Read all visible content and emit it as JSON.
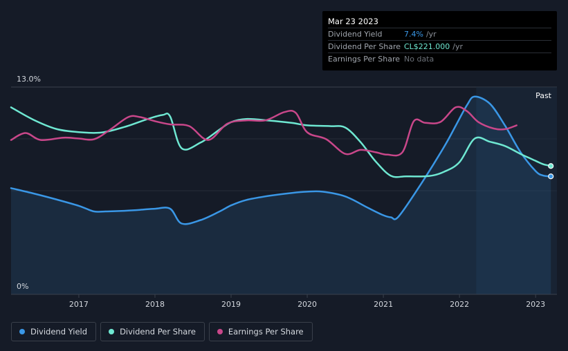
{
  "tooltip": {
    "date": "Mar 23 2023",
    "rows": [
      {
        "label": "Dividend Yield",
        "value": "7.4%",
        "unit": "/yr"
      },
      {
        "label": "Dividend Per Share",
        "value": "CL$221.000",
        "unit": "/yr"
      },
      {
        "label": "Earnings Per Share",
        "value": "No data",
        "unit": ""
      }
    ]
  },
  "past_label": "Past",
  "legend": [
    {
      "label": "Dividend Yield",
      "color": "#3a97e6"
    },
    {
      "label": "Dividend Per Share",
      "color": "#6fe8d2"
    },
    {
      "label": "Earnings Per Share",
      "color": "#c9478a"
    }
  ],
  "chart_data": {
    "type": "line",
    "title": "",
    "xlabel": "",
    "ylabel": "",
    "xlim": [
      2016.11,
      2023.28
    ],
    "ylim": [
      0,
      13.0
    ],
    "y_tick_labels": [
      "13.0%",
      "0%"
    ],
    "x_ticks": [
      2017,
      2018,
      2019,
      2020,
      2021,
      2022,
      2023
    ],
    "x_tick_labels": [
      "2017",
      "2018",
      "2019",
      "2020",
      "2021",
      "2022",
      "2023"
    ],
    "grid": true,
    "legend_position": "bottom-left",
    "past_region_start": 2022.22,
    "series": [
      {
        "name": "Dividend Yield",
        "color": "#3a97e6",
        "area": true,
        "points": [
          [
            2016.11,
            6.66
          ],
          [
            2016.4,
            6.33
          ],
          [
            2016.7,
            5.96
          ],
          [
            2017.0,
            5.55
          ],
          [
            2017.2,
            5.2
          ],
          [
            2017.35,
            5.2
          ],
          [
            2017.5,
            5.22
          ],
          [
            2017.8,
            5.3
          ],
          [
            2018.0,
            5.37
          ],
          [
            2018.2,
            5.37
          ],
          [
            2018.35,
            4.44
          ],
          [
            2018.6,
            4.66
          ],
          [
            2018.85,
            5.2
          ],
          [
            2019.0,
            5.58
          ],
          [
            2019.2,
            5.92
          ],
          [
            2019.5,
            6.18
          ],
          [
            2019.8,
            6.36
          ],
          [
            2020.0,
            6.44
          ],
          [
            2020.2,
            6.44
          ],
          [
            2020.5,
            6.14
          ],
          [
            2020.8,
            5.42
          ],
          [
            2021.0,
            4.96
          ],
          [
            2021.1,
            4.83
          ],
          [
            2021.2,
            4.88
          ],
          [
            2021.5,
            6.96
          ],
          [
            2021.8,
            9.27
          ],
          [
            2021.95,
            10.57
          ],
          [
            2022.1,
            11.88
          ],
          [
            2022.2,
            12.4
          ],
          [
            2022.4,
            11.95
          ],
          [
            2022.6,
            10.57
          ],
          [
            2022.8,
            8.93
          ],
          [
            2023.0,
            7.73
          ],
          [
            2023.1,
            7.45
          ],
          [
            2023.2,
            7.4
          ]
        ]
      },
      {
        "name": "Dividend Per Share",
        "color": "#6fe8d2",
        "points": [
          [
            2016.11,
            11.73
          ],
          [
            2016.4,
            10.96
          ],
          [
            2016.7,
            10.38
          ],
          [
            2017.0,
            10.17
          ],
          [
            2017.3,
            10.15
          ],
          [
            2017.6,
            10.5
          ],
          [
            2017.9,
            10.99
          ],
          [
            2018.1,
            11.25
          ],
          [
            2018.2,
            11.15
          ],
          [
            2018.35,
            9.16
          ],
          [
            2018.6,
            9.52
          ],
          [
            2018.85,
            10.34
          ],
          [
            2019.0,
            10.8
          ],
          [
            2019.2,
            11.0
          ],
          [
            2019.5,
            10.9
          ],
          [
            2019.8,
            10.75
          ],
          [
            2020.0,
            10.6
          ],
          [
            2020.3,
            10.55
          ],
          [
            2020.5,
            10.46
          ],
          [
            2020.7,
            9.55
          ],
          [
            2020.9,
            8.33
          ],
          [
            2021.1,
            7.43
          ],
          [
            2021.3,
            7.4
          ],
          [
            2021.6,
            7.42
          ],
          [
            2021.8,
            7.69
          ],
          [
            2022.0,
            8.29
          ],
          [
            2022.2,
            9.77
          ],
          [
            2022.4,
            9.57
          ],
          [
            2022.6,
            9.3
          ],
          [
            2022.8,
            8.81
          ],
          [
            2023.0,
            8.37
          ],
          [
            2023.1,
            8.16
          ],
          [
            2023.2,
            8.05
          ]
        ]
      },
      {
        "name": "Earnings Per Share",
        "color": "#c9478a",
        "points": [
          [
            2016.11,
            9.68
          ],
          [
            2016.3,
            10.12
          ],
          [
            2016.5,
            9.68
          ],
          [
            2016.8,
            9.83
          ],
          [
            2017.0,
            9.77
          ],
          [
            2017.2,
            9.73
          ],
          [
            2017.4,
            10.29
          ],
          [
            2017.65,
            11.12
          ],
          [
            2017.8,
            11.12
          ],
          [
            2018.0,
            10.86
          ],
          [
            2018.2,
            10.66
          ],
          [
            2018.45,
            10.55
          ],
          [
            2018.7,
            9.68
          ],
          [
            2018.95,
            10.7
          ],
          [
            2019.2,
            10.91
          ],
          [
            2019.45,
            10.91
          ],
          [
            2019.7,
            11.43
          ],
          [
            2019.85,
            11.38
          ],
          [
            2020.0,
            10.16
          ],
          [
            2020.25,
            9.73
          ],
          [
            2020.5,
            8.81
          ],
          [
            2020.7,
            9.06
          ],
          [
            2020.9,
            8.91
          ],
          [
            2021.05,
            8.76
          ],
          [
            2021.25,
            8.91
          ],
          [
            2021.4,
            10.86
          ],
          [
            2021.55,
            10.76
          ],
          [
            2021.75,
            10.81
          ],
          [
            2021.95,
            11.73
          ],
          [
            2022.1,
            11.48
          ],
          [
            2022.25,
            10.8
          ],
          [
            2022.45,
            10.4
          ],
          [
            2022.6,
            10.36
          ],
          [
            2022.75,
            10.6
          ]
        ]
      }
    ],
    "end_markers": [
      "Dividend Yield",
      "Dividend Per Share"
    ]
  }
}
